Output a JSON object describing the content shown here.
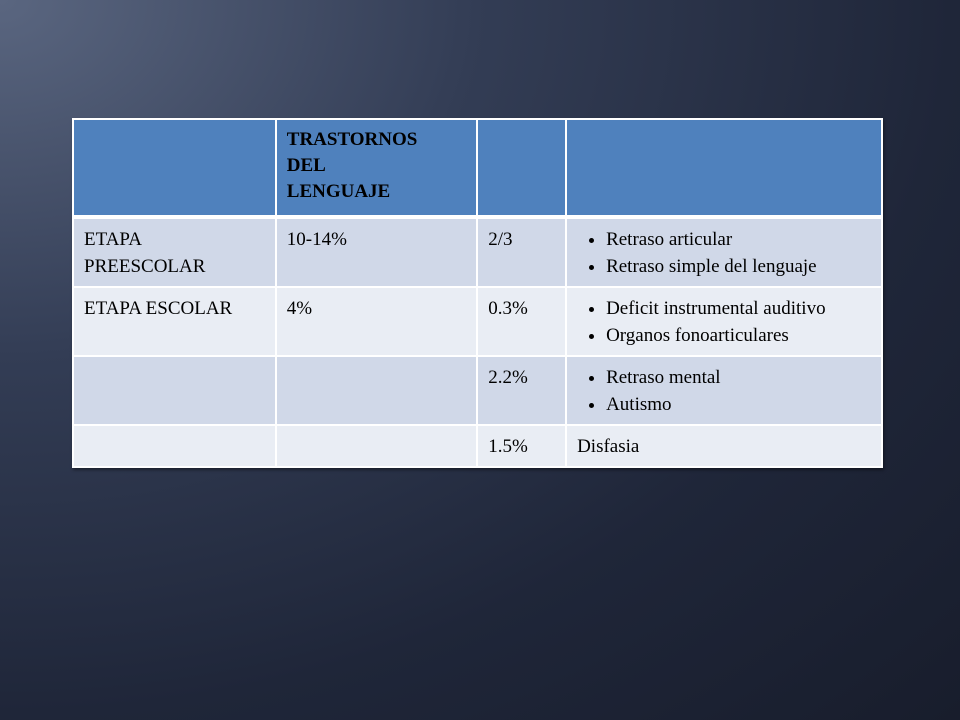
{
  "table": {
    "header_title": "TRASTORNOS DEL LENGUAJE",
    "rows": [
      {
        "stage": "ETAPA PREESCOLAR",
        "prevalence": "10-14%",
        "ratio": "2/3",
        "items": [
          "Retraso articular",
          "Retraso simple del lenguaje"
        ]
      },
      {
        "stage": "ETAPA ESCOLAR",
        "prevalence": "4%",
        "ratio": "0.3%",
        "items": [
          "Deficit instrumental auditivo",
          "Organos fonoarticulares"
        ]
      },
      {
        "ratio": "2.2%",
        "items": [
          "Retraso mental",
          "Autismo"
        ]
      },
      {
        "ratio": "1.5%",
        "text": "Disfasia"
      }
    ]
  }
}
